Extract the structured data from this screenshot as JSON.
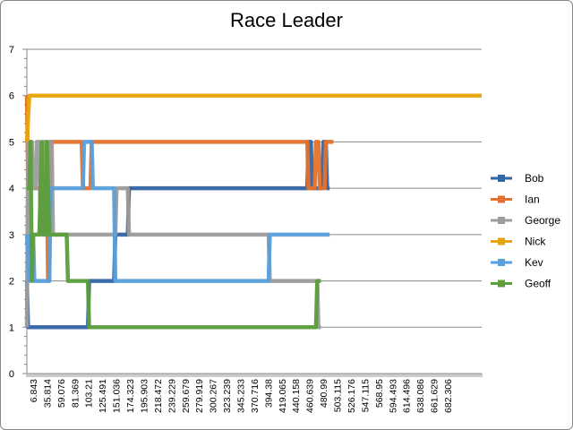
{
  "chart_data": {
    "type": "line",
    "title": "Race Leader",
    "xlabel": "",
    "ylabel": "",
    "ylim": [
      0,
      7
    ],
    "yticks": [
      0,
      1,
      2,
      3,
      4,
      5,
      6,
      7
    ],
    "grid": true,
    "legend_position": "right",
    "x_tick_labels": [
      "6.843",
      "35.814",
      "59.076",
      "81.369",
      "103.21",
      "125.491",
      "151.036",
      "174.323",
      "195.903",
      "218.472",
      "239.229",
      "259.679",
      "279.919",
      "300.267",
      "323.239",
      "345.233",
      "370.716",
      "394.38",
      "419.065",
      "440.158",
      "460.639",
      "480.99",
      "503.115",
      "526.176",
      "547.115",
      "568.95",
      "594.493",
      "614.496",
      "638.086",
      "661.629",
      "682.306"
    ],
    "x_range": [
      0,
      730
    ],
    "series": [
      {
        "name": "Bob",
        "color": "#3465A4",
        "points": [
          [
            0,
            2
          ],
          [
            2,
            1
          ],
          [
            98,
            1
          ],
          [
            100,
            2
          ],
          [
            140,
            2
          ],
          [
            142,
            3
          ],
          [
            162,
            3
          ],
          [
            164,
            4
          ],
          [
            450,
            4
          ],
          [
            452,
            5
          ],
          [
            456,
            5
          ],
          [
            458,
            4
          ],
          [
            474,
            4
          ],
          [
            476,
            5
          ],
          [
            480,
            5
          ],
          [
            482,
            4
          ],
          [
            486,
            4
          ]
        ]
      },
      {
        "name": "Ian",
        "color": "#E4712A",
        "points": [
          [
            0,
            6
          ],
          [
            2,
            4
          ],
          [
            32,
            4
          ],
          [
            34,
            2
          ],
          [
            36,
            2
          ],
          [
            38,
            5
          ],
          [
            88,
            5
          ],
          [
            90,
            4
          ],
          [
            102,
            4
          ],
          [
            104,
            5
          ],
          [
            450,
            5
          ],
          [
            452,
            4
          ],
          [
            462,
            4
          ],
          [
            464,
            5
          ],
          [
            468,
            5
          ],
          [
            470,
            4
          ],
          [
            478,
            4
          ],
          [
            480,
            5
          ],
          [
            492,
            5
          ]
        ]
      },
      {
        "name": "George",
        "color": "#9C9C9C",
        "points": [
          [
            0,
            1
          ],
          [
            2,
            5
          ],
          [
            8,
            5
          ],
          [
            10,
            4
          ],
          [
            14,
            4
          ],
          [
            16,
            5
          ],
          [
            20,
            5
          ],
          [
            22,
            3
          ],
          [
            26,
            3
          ],
          [
            28,
            5
          ],
          [
            30,
            5
          ],
          [
            32,
            3
          ],
          [
            34,
            3
          ],
          [
            36,
            5
          ],
          [
            40,
            5
          ],
          [
            42,
            3
          ],
          [
            142,
            3
          ],
          [
            144,
            4
          ],
          [
            162,
            4
          ],
          [
            164,
            3
          ],
          [
            388,
            3
          ],
          [
            390,
            2
          ],
          [
            466,
            2
          ],
          [
            468,
            1
          ],
          [
            472,
            1
          ]
        ]
      },
      {
        "name": "Nick",
        "color": "#E8A50A",
        "points": [
          [
            0,
            5
          ],
          [
            4,
            6
          ],
          [
            730,
            6
          ]
        ]
      },
      {
        "name": "Kev",
        "color": "#5AA0DC",
        "points": [
          [
            0,
            3
          ],
          [
            4,
            2
          ],
          [
            6,
            3
          ],
          [
            10,
            3
          ],
          [
            12,
            2
          ],
          [
            36,
            2
          ],
          [
            38,
            4
          ],
          [
            90,
            4
          ],
          [
            92,
            5
          ],
          [
            104,
            5
          ],
          [
            106,
            4
          ],
          [
            140,
            4
          ],
          [
            142,
            2
          ],
          [
            388,
            2
          ],
          [
            390,
            3
          ],
          [
            486,
            3
          ]
        ]
      },
      {
        "name": "Geoff",
        "color": "#5B9E3C",
        "points": [
          [
            0,
            4
          ],
          [
            4,
            4
          ],
          [
            6,
            5
          ],
          [
            8,
            2
          ],
          [
            10,
            3
          ],
          [
            20,
            3
          ],
          [
            22,
            4
          ],
          [
            24,
            5
          ],
          [
            26,
            3
          ],
          [
            30,
            3
          ],
          [
            32,
            5
          ],
          [
            34,
            4
          ],
          [
            36,
            3
          ],
          [
            64,
            3
          ],
          [
            66,
            2
          ],
          [
            98,
            2
          ],
          [
            100,
            1
          ],
          [
            464,
            1
          ],
          [
            466,
            2
          ],
          [
            472,
            2
          ]
        ]
      }
    ]
  }
}
